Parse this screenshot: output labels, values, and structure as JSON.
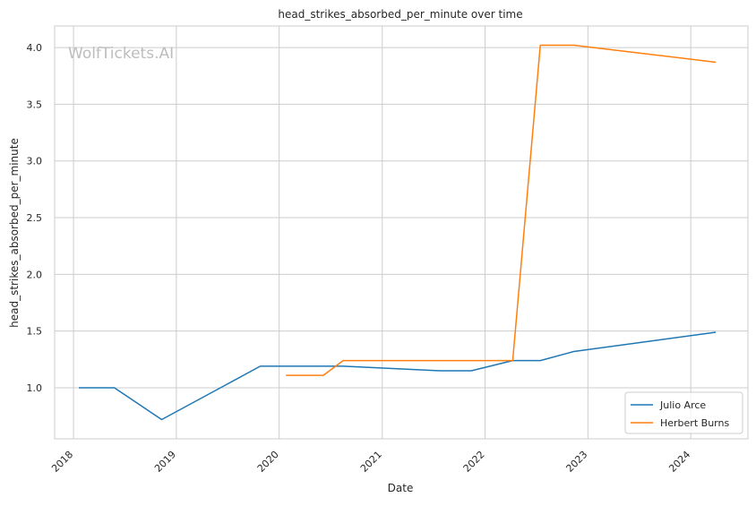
{
  "watermark": "WolfTickets.AI",
  "chart_data": {
    "type": "line",
    "title": "head_strikes_absorbed_per_minute over time",
    "xlabel": "Date",
    "ylabel": "head_strikes_absorbed_per_minute",
    "xlim": [
      "2017-10-26",
      "2024-07-22"
    ],
    "ylim": [
      0.55,
      4.19
    ],
    "x_ticks": [
      "2018",
      "2019",
      "2020",
      "2021",
      "2022",
      "2023",
      "2024"
    ],
    "y_ticks": [
      "1.0",
      "1.5",
      "2.0",
      "2.5",
      "3.0",
      "3.5",
      "4.0"
    ],
    "grid": true,
    "legend_position": "lower-right",
    "series": [
      {
        "name": "Julio Arce",
        "color": "#1f77b4",
        "points": [
          {
            "x": "2018-01-20",
            "y": 1.0
          },
          {
            "x": "2018-05-26",
            "y": 1.0
          },
          {
            "x": "2018-11-10",
            "y": 0.72
          },
          {
            "x": "2019-10-26",
            "y": 1.19
          },
          {
            "x": "2020-08-15",
            "y": 1.19
          },
          {
            "x": "2021-07-24",
            "y": 1.15
          },
          {
            "x": "2021-11-13",
            "y": 1.15
          },
          {
            "x": "2022-04-09",
            "y": 1.24
          },
          {
            "x": "2022-07-16",
            "y": 1.24
          },
          {
            "x": "2022-11-12",
            "y": 1.32
          },
          {
            "x": "2024-03-30",
            "y": 1.49
          }
        ]
      },
      {
        "name": "Herbert Burns",
        "color": "#ff7f0e",
        "points": [
          {
            "x": "2020-01-25",
            "y": 1.11
          },
          {
            "x": "2020-06-06",
            "y": 1.11
          },
          {
            "x": "2020-08-15",
            "y": 1.24
          },
          {
            "x": "2022-04-09",
            "y": 1.24
          },
          {
            "x": "2022-07-16",
            "y": 4.02
          },
          {
            "x": "2022-11-12",
            "y": 4.02
          },
          {
            "x": "2024-03-30",
            "y": 3.87
          }
        ]
      }
    ]
  }
}
